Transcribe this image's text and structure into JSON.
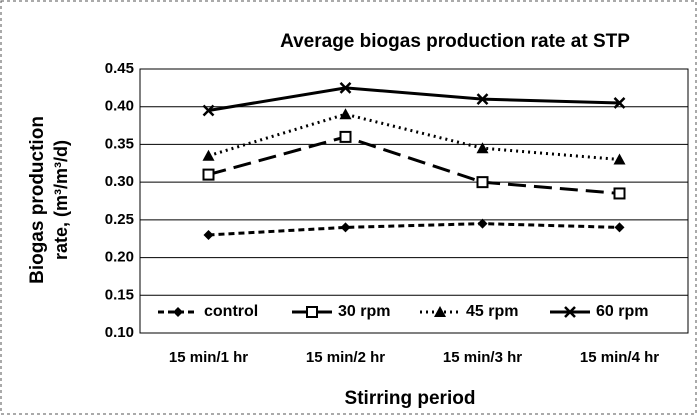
{
  "chart_data": {
    "type": "line",
    "title": "Average biogas production rate at STP",
    "x_label": "Stirring period",
    "y_label": [
      "Biogas production",
      "rate, (m³/m³/d)"
    ],
    "categories": [
      "15 min/1 hr",
      "15 min/2 hr",
      "15 min/3 hr",
      "15 min/4 hr"
    ],
    "series": [
      {
        "name": "control",
        "color": "#000000",
        "dash": "6 4",
        "marker": "diamond",
        "values": [
          0.23,
          0.24,
          0.245,
          0.24
        ]
      },
      {
        "name": "30 rpm",
        "color": "#000000",
        "dash": "18 8",
        "marker": "square",
        "values": [
          0.31,
          0.36,
          0.3,
          0.285
        ]
      },
      {
        "name": "45 rpm",
        "color": "#000000",
        "dash": "2 4",
        "marker": "triangle",
        "values": [
          0.335,
          0.39,
          0.345,
          0.33
        ]
      },
      {
        "name": "60 rpm",
        "color": "#000000",
        "dash": "none",
        "marker": "x",
        "values": [
          0.395,
          0.425,
          0.41,
          0.405
        ]
      }
    ],
    "ylim": [
      0.1,
      0.45
    ],
    "yticks": [
      {
        "value": 0.1,
        "label": "0.10"
      },
      0.15,
      {
        "value": 0.2,
        "label": "0.20"
      },
      0.25,
      {
        "value": 0.3,
        "label": "0.30"
      },
      0.35,
      {
        "value": 0.4,
        "label": "0.40"
      },
      0.45
    ],
    "grid": true,
    "legend": "bottom"
  }
}
